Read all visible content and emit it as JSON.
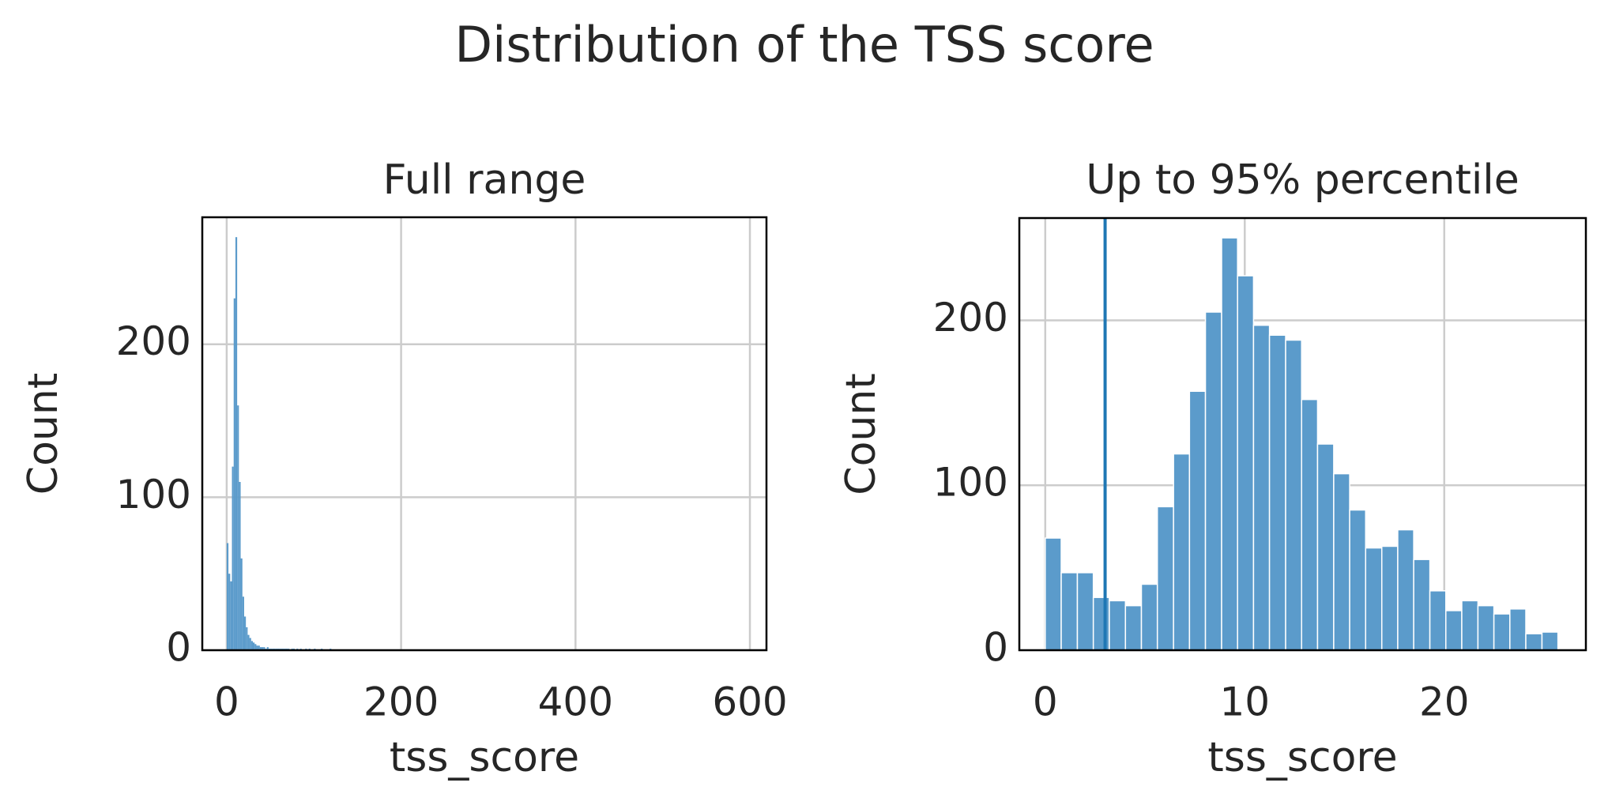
{
  "title": "Distribution of the TSS score",
  "chart_data": [
    {
      "type": "histogram",
      "title": "Full range",
      "xlabel": "tss_score",
      "ylabel": "Count",
      "bins": [
        0,
        2,
        4,
        6,
        8,
        10,
        12,
        14,
        16,
        18,
        20,
        22,
        24,
        26,
        28,
        30,
        32,
        34,
        36,
        38,
        40,
        42,
        44,
        46,
        48,
        50,
        52,
        54,
        56,
        58,
        60,
        62,
        64,
        66,
        68,
        70,
        72,
        74,
        76,
        78,
        80,
        82,
        84,
        86,
        88,
        90,
        92,
        94,
        96,
        98,
        100,
        102,
        104,
        106,
        108,
        110,
        112,
        114,
        116,
        118,
        120
      ],
      "counts": [
        70,
        50,
        45,
        120,
        230,
        270,
        160,
        110,
        60,
        35,
        22,
        15,
        10,
        8,
        6,
        5,
        4,
        3,
        3,
        2,
        2,
        2,
        1,
        2,
        1,
        1,
        1,
        1,
        1,
        1,
        1,
        1,
        1,
        1,
        1,
        1,
        0,
        1,
        1,
        0,
        1,
        0,
        1,
        0,
        0,
        1,
        0,
        1,
        0,
        0,
        1,
        0,
        0,
        0,
        1,
        0,
        0,
        0,
        0,
        1
      ],
      "xlim": [
        -28,
        619
      ],
      "ylim": [
        0,
        283
      ],
      "xticks": [
        0,
        200,
        400,
        600
      ],
      "yticks": [
        0,
        100,
        200
      ],
      "color": "#5b9bcb",
      "grid": true
    },
    {
      "type": "histogram",
      "title": "Up to 95% percentile",
      "xlabel": "tss_score",
      "ylabel": "Count",
      "bins": [
        0,
        0.8,
        1.61,
        2.41,
        3.21,
        4.02,
        4.82,
        5.62,
        6.43,
        7.23,
        8.03,
        8.84,
        9.64,
        10.44,
        11.24,
        12.05,
        12.85,
        13.65,
        14.46,
        15.26,
        16.06,
        16.87,
        17.67,
        18.47,
        19.28,
        20.08,
        20.88,
        21.69,
        22.49,
        23.29,
        24.09,
        24.9,
        25.7
      ],
      "counts": [
        68,
        47,
        47,
        32,
        30,
        27,
        40,
        87,
        119,
        157,
        205,
        250,
        227,
        197,
        191,
        188,
        152,
        125,
        107,
        85,
        62,
        63,
        73,
        55,
        36,
        24,
        30,
        27,
        22,
        25,
        10,
        11
      ],
      "xlim": [
        -1.3,
        27.1
      ],
      "ylim": [
        0,
        262
      ],
      "xticks": [
        0,
        10,
        20
      ],
      "yticks": [
        0,
        100,
        200
      ],
      "color": "#5b9bcb",
      "grid": true,
      "vline": 3,
      "vline_color": "#1f77b4"
    }
  ]
}
